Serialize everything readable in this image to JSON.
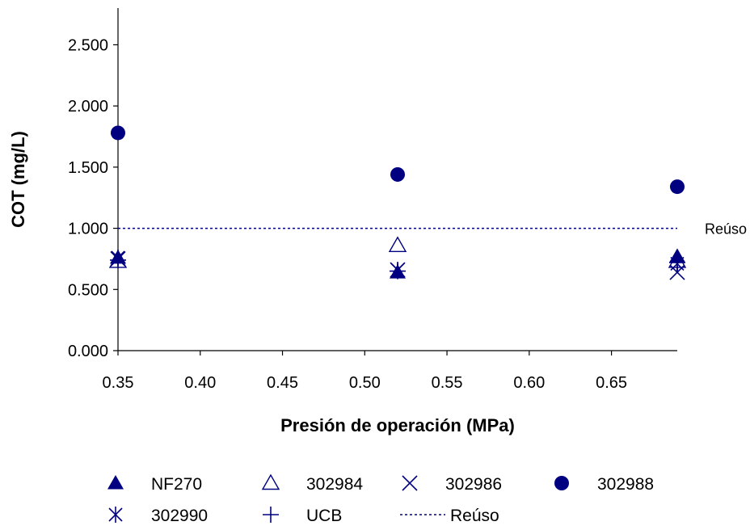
{
  "chart_data": {
    "type": "scatter",
    "title": "",
    "xlabel": "Presión de operación (MPa)",
    "ylabel": "COT (mg/L)",
    "xlim": [
      0.35,
      0.69
    ],
    "ylim": [
      0,
      2.8
    ],
    "x_ticks": [
      "0.35",
      "0.40",
      "0.45",
      "0.50",
      "0.55",
      "0.60",
      "0.65"
    ],
    "y_ticks": [
      "0.000",
      "0.500",
      "1.000",
      "1.500",
      "2.000",
      "2.500"
    ],
    "grid": false,
    "legend_position": "bottom",
    "series": [
      {
        "name": "NF270",
        "marker": "filled-triangle",
        "x": [
          0.35,
          0.52,
          0.69
        ],
        "y": [
          0.76,
          0.64,
          0.77
        ]
      },
      {
        "name": "302984",
        "marker": "open-triangle",
        "x": [
          0.35,
          0.52,
          0.69
        ],
        "y": [
          0.73,
          0.86,
          0.73
        ]
      },
      {
        "name": "302986",
        "marker": "x",
        "x": [
          0.35,
          0.52,
          0.69
        ],
        "y": [
          0.75,
          0.66,
          0.64
        ]
      },
      {
        "name": "302988",
        "marker": "filled-circle",
        "x": [
          0.35,
          0.52,
          0.69
        ],
        "y": [
          1.78,
          1.44,
          1.34
        ]
      },
      {
        "name": "302990",
        "marker": "asterisk",
        "x": [
          0.35,
          0.52,
          0.69
        ],
        "y": [
          0.76,
          0.66,
          0.71
        ]
      },
      {
        "name": "UCB",
        "marker": "plus",
        "x": [
          0.35,
          0.52,
          0.69
        ],
        "y": [
          0.74,
          0.65,
          0.72
        ]
      }
    ],
    "reference_line": {
      "name": "Reúso",
      "y": 1.0,
      "style": "dotted",
      "label": "Reúso"
    },
    "colors": {
      "series": "#000080",
      "axis": "#000000"
    }
  }
}
